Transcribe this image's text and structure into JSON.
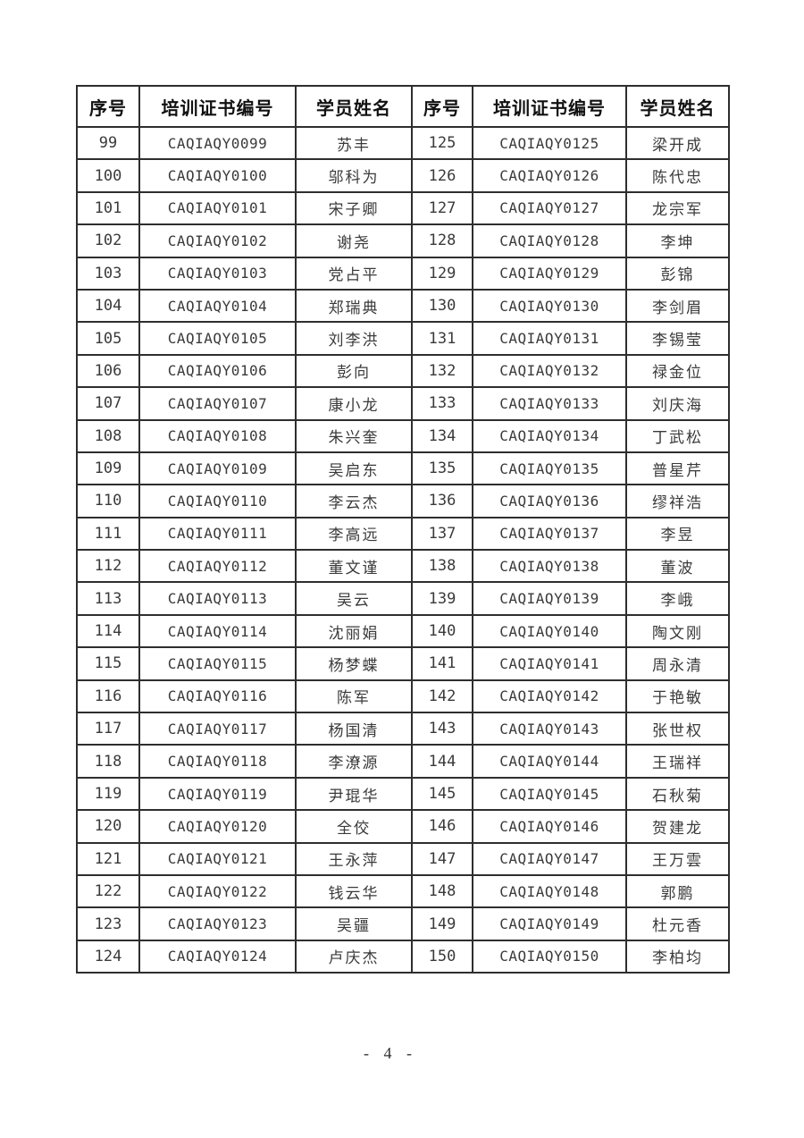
{
  "colors": {
    "border": "#2e2e2e",
    "header_text": "#111111",
    "body_text": "#3a3a3a"
  },
  "document": {
    "page_number_label": "- 4 -"
  },
  "table": {
    "headers": [
      "序号",
      "培训证书编号",
      "学员姓名",
      "序号",
      "培训证书编号",
      "学员姓名"
    ],
    "rows": [
      [
        "99",
        "CAQIAQY0099",
        "苏丰",
        "125",
        "CAQIAQY0125",
        "梁开成"
      ],
      [
        "100",
        "CAQIAQY0100",
        "邬科为",
        "126",
        "CAQIAQY0126",
        "陈代忠"
      ],
      [
        "101",
        "CAQIAQY0101",
        "宋子卿",
        "127",
        "CAQIAQY0127",
        "龙宗军"
      ],
      [
        "102",
        "CAQIAQY0102",
        "谢尧",
        "128",
        "CAQIAQY0128",
        "李坤"
      ],
      [
        "103",
        "CAQIAQY0103",
        "党占平",
        "129",
        "CAQIAQY0129",
        "彭锦"
      ],
      [
        "104",
        "CAQIAQY0104",
        "郑瑞典",
        "130",
        "CAQIAQY0130",
        "李剑眉"
      ],
      [
        "105",
        "CAQIAQY0105",
        "刘李洪",
        "131",
        "CAQIAQY0131",
        "李锡莹"
      ],
      [
        "106",
        "CAQIAQY0106",
        "彭向",
        "132",
        "CAQIAQY0132",
        "禄金位"
      ],
      [
        "107",
        "CAQIAQY0107",
        "康小龙",
        "133",
        "CAQIAQY0133",
        "刘庆海"
      ],
      [
        "108",
        "CAQIAQY0108",
        "朱兴奎",
        "134",
        "CAQIAQY0134",
        "丁武松"
      ],
      [
        "109",
        "CAQIAQY0109",
        "吴启东",
        "135",
        "CAQIAQY0135",
        "普星芹"
      ],
      [
        "110",
        "CAQIAQY0110",
        "李云杰",
        "136",
        "CAQIAQY0136",
        "缪祥浩"
      ],
      [
        "111",
        "CAQIAQY0111",
        "李高远",
        "137",
        "CAQIAQY0137",
        "李昱"
      ],
      [
        "112",
        "CAQIAQY0112",
        "董文谨",
        "138",
        "CAQIAQY0138",
        "董波"
      ],
      [
        "113",
        "CAQIAQY0113",
        "吴云",
        "139",
        "CAQIAQY0139",
        "李峨"
      ],
      [
        "114",
        "CAQIAQY0114",
        "沈丽娟",
        "140",
        "CAQIAQY0140",
        "陶文刚"
      ],
      [
        "115",
        "CAQIAQY0115",
        "杨梦蝶",
        "141",
        "CAQIAQY0141",
        "周永清"
      ],
      [
        "116",
        "CAQIAQY0116",
        "陈军",
        "142",
        "CAQIAQY0142",
        "于艳敏"
      ],
      [
        "117",
        "CAQIAQY0117",
        "杨国清",
        "143",
        "CAQIAQY0143",
        "张世权"
      ],
      [
        "118",
        "CAQIAQY0118",
        "李潦源",
        "144",
        "CAQIAQY0144",
        "王瑞祥"
      ],
      [
        "119",
        "CAQIAQY0119",
        "尹琨华",
        "145",
        "CAQIAQY0145",
        "石秋菊"
      ],
      [
        "120",
        "CAQIAQY0120",
        "全佼",
        "146",
        "CAQIAQY0146",
        "贺建龙"
      ],
      [
        "121",
        "CAQIAQY0121",
        "王永萍",
        "147",
        "CAQIAQY0147",
        "王万雲"
      ],
      [
        "122",
        "CAQIAQY0122",
        "钱云华",
        "148",
        "CAQIAQY0148",
        "郭鹏"
      ],
      [
        "123",
        "CAQIAQY0123",
        "吴疆",
        "149",
        "CAQIAQY0149",
        "杜元香"
      ],
      [
        "124",
        "CAQIAQY0124",
        "卢庆杰",
        "150",
        "CAQIAQY0150",
        "李柏均"
      ]
    ]
  }
}
